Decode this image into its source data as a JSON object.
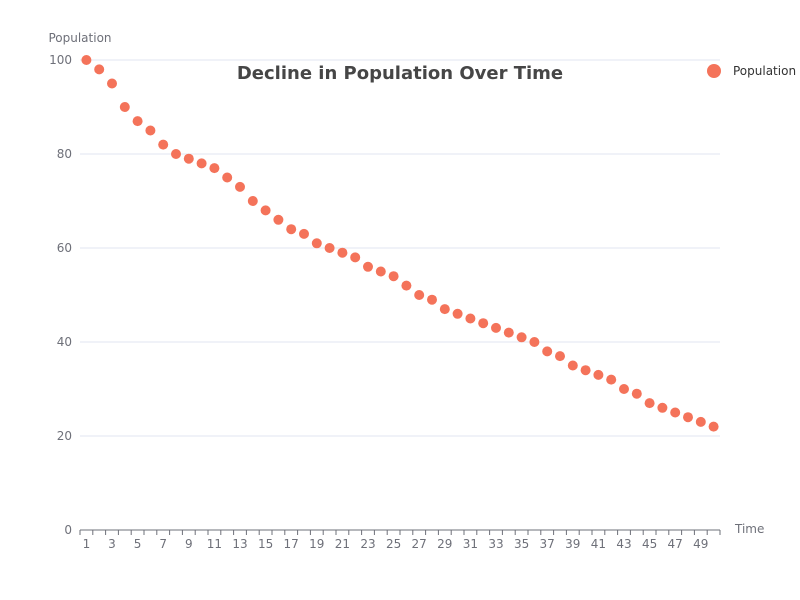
{
  "chart_data": {
    "type": "scatter",
    "title": "Decline in Population Over Time",
    "xlabel": "Time",
    "ylabel": "Population",
    "x": [
      1,
      2,
      3,
      4,
      5,
      6,
      7,
      8,
      9,
      10,
      11,
      12,
      13,
      14,
      15,
      16,
      17,
      18,
      19,
      20,
      21,
      22,
      23,
      24,
      25,
      26,
      27,
      28,
      29,
      30,
      31,
      32,
      33,
      34,
      35,
      36,
      37,
      38,
      39,
      40,
      41,
      42,
      43,
      44,
      45,
      46,
      47,
      48,
      49,
      50
    ],
    "series": [
      {
        "name": "Population",
        "color": "#f4735a",
        "values": [
          100,
          98,
          95,
          90,
          87,
          85,
          82,
          80,
          79,
          78,
          77,
          75,
          73,
          70,
          68,
          66,
          64,
          63,
          61,
          60,
          59,
          58,
          56,
          55,
          54,
          52,
          50,
          49,
          47,
          46,
          45,
          44,
          43,
          42,
          41,
          40,
          38,
          37,
          35,
          34,
          33,
          32,
          30,
          29,
          27,
          26,
          25,
          24,
          23,
          22
        ]
      }
    ],
    "x_tick_labels": [
      "1",
      "3",
      "5",
      "7",
      "9",
      "11",
      "13",
      "15",
      "17",
      "19",
      "21",
      "23",
      "25",
      "27",
      "29",
      "31",
      "33",
      "35",
      "37",
      "39",
      "41",
      "43",
      "45",
      "47",
      "49"
    ],
    "y_ticks": [
      0,
      20,
      40,
      60,
      80,
      100
    ],
    "ylim": [
      0,
      100
    ],
    "grid": true,
    "legend_position": "top-right"
  }
}
